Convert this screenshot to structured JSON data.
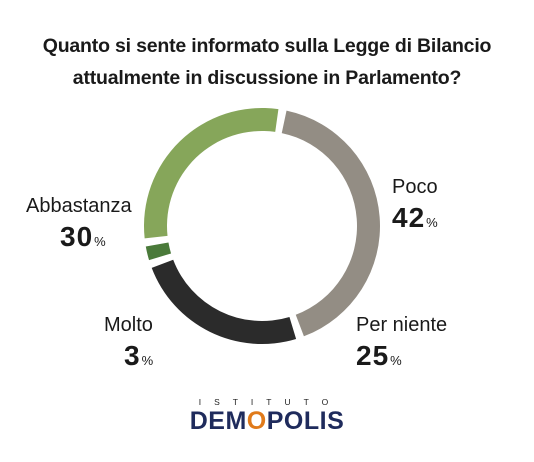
{
  "title_lines": [
    "Quanto si sente informato sulla Legge di Bilancio",
    "attualmente in discussione in Parlamento?"
  ],
  "chart_data": {
    "type": "pie",
    "variant": "donut",
    "title": "Quanto si sente informato sulla Legge di Bilancio attualmente in discussione in Parlamento?",
    "unit": "%",
    "slices": [
      {
        "label": "Poco",
        "value": 42,
        "color": "#938d84"
      },
      {
        "label": "Per niente",
        "value": 25,
        "color": "#2b2b2b"
      },
      {
        "label": "Molto",
        "value": 3,
        "color": "#4a7a3a"
      },
      {
        "label": "Abbastanza",
        "value": 30,
        "color": "#86a65a"
      }
    ]
  },
  "labels": {
    "poco": {
      "name": "Poco",
      "value": "42",
      "pct": "%"
    },
    "per_niente": {
      "name": "Per niente",
      "value": "25",
      "pct": "%"
    },
    "molto": {
      "name": "Molto",
      "value": "3",
      "pct": "%"
    },
    "abbastanza": {
      "name": "Abbastanza",
      "value": "30",
      "pct": "%"
    }
  },
  "logo": {
    "subtitle": "ISTITUTO",
    "brand_before": "DEM",
    "brand_accent": "O",
    "brand_after": "POLIS"
  }
}
